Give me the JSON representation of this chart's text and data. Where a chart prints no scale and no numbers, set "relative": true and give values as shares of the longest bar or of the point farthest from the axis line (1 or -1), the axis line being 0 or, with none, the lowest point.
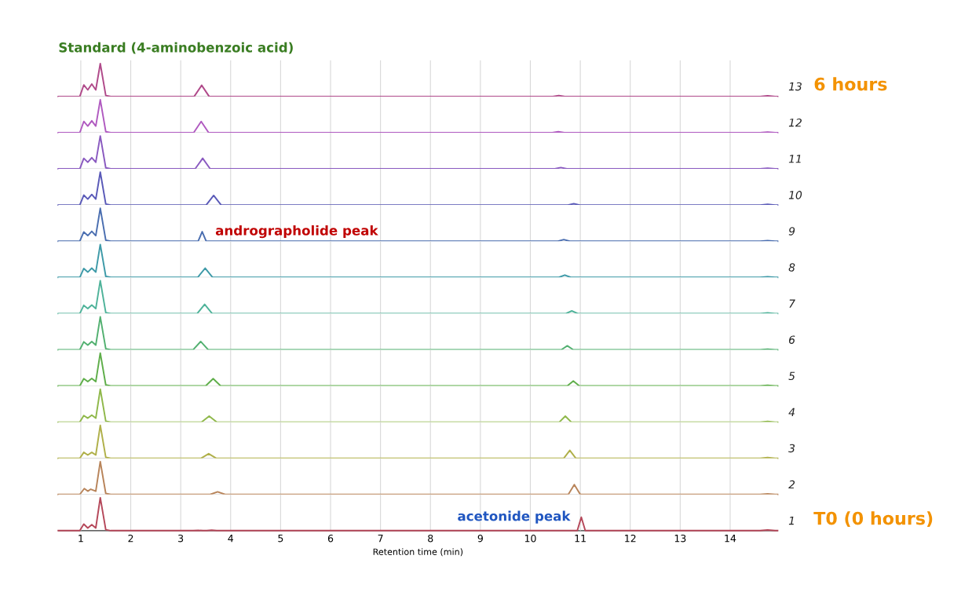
{
  "chart_data": [
    {
      "type": "line",
      "relative": true,
      "xlim": [
        0.55,
        14.95
      ],
      "xticks": [
        1,
        2,
        3,
        4,
        5,
        6,
        7,
        8,
        9,
        10,
        11,
        12,
        13,
        14
      ],
      "tick_labels": false,
      "grid": "x",
      "legend": false,
      "annotations": [
        "13",
        "6 hours",
        "Standard (4-aminobenzoic acid)"
      ],
      "series": [
        {
          "color": "#b04a8a",
          "x": [
            0.55,
            0.98,
            1.06,
            1.14,
            1.22,
            1.3,
            1.39,
            1.5,
            1.6,
            3.27,
            3.42,
            3.57,
            10.45,
            10.57,
            10.69,
            14.6,
            14.75,
            14.9,
            14.95
          ],
          "values": [
            0,
            0,
            0.35,
            0.2,
            0.38,
            0.2,
            1,
            0.03,
            0,
            0,
            0.34,
            0,
            0,
            0.03,
            0,
            0,
            0.02,
            0,
            0
          ]
        }
      ]
    },
    {
      "type": "line",
      "relative": true,
      "xlim": [
        0.55,
        14.95
      ],
      "xticks": [
        1,
        2,
        3,
        4,
        5,
        6,
        7,
        8,
        9,
        10,
        11,
        12,
        13,
        14
      ],
      "tick_labels": false,
      "grid": "x",
      "legend": false,
      "annotations": [
        "12"
      ],
      "series": [
        {
          "color": "#b05ac0",
          "x": [
            0.55,
            0.98,
            1.06,
            1.14,
            1.22,
            1.3,
            1.39,
            1.5,
            1.6,
            3.26,
            3.41,
            3.56,
            10.44,
            10.56,
            10.68,
            14.6,
            14.75,
            14.9,
            14.95
          ],
          "values": [
            0,
            0,
            0.34,
            0.2,
            0.36,
            0.2,
            1,
            0.03,
            0,
            0,
            0.34,
            0,
            0,
            0.03,
            0,
            0,
            0.02,
            0,
            0
          ]
        }
      ]
    },
    {
      "type": "line",
      "relative": true,
      "xlim": [
        0.55,
        14.95
      ],
      "xticks": [
        1,
        2,
        3,
        4,
        5,
        6,
        7,
        8,
        9,
        10,
        11,
        12,
        13,
        14
      ],
      "tick_labels": false,
      "grid": "x",
      "legend": false,
      "annotations": [
        "11"
      ],
      "series": [
        {
          "color": "#8a5ac0",
          "x": [
            0.55,
            0.98,
            1.06,
            1.14,
            1.22,
            1.3,
            1.39,
            1.5,
            1.6,
            3.29,
            3.44,
            3.59,
            10.49,
            10.61,
            10.73,
            14.6,
            14.75,
            14.9,
            14.95
          ],
          "values": [
            0,
            0,
            0.32,
            0.2,
            0.34,
            0.2,
            1,
            0.03,
            0,
            0,
            0.32,
            0,
            0,
            0.04,
            0,
            0,
            0.02,
            0,
            0
          ]
        }
      ]
    },
    {
      "type": "line",
      "relative": true,
      "xlim": [
        0.55,
        14.95
      ],
      "xticks": [
        1,
        2,
        3,
        4,
        5,
        6,
        7,
        8,
        9,
        10,
        11,
        12,
        13,
        14
      ],
      "tick_labels": false,
      "grid": "x",
      "legend": false,
      "annotations": [
        "10"
      ],
      "series": [
        {
          "color": "#5a5ab8",
          "x": [
            0.55,
            0.98,
            1.06,
            1.14,
            1.22,
            1.3,
            1.39,
            1.5,
            1.6,
            3.51,
            3.66,
            3.81,
            10.75,
            10.87,
            10.99,
            14.6,
            14.75,
            14.9,
            14.95
          ],
          "values": [
            0,
            0,
            0.3,
            0.18,
            0.32,
            0.18,
            1,
            0.03,
            0,
            0,
            0.29,
            0,
            0,
            0.04,
            0,
            0,
            0.02,
            0,
            0
          ]
        }
      ]
    },
    {
      "type": "line",
      "relative": true,
      "xlim": [
        0.55,
        14.95
      ],
      "xticks": [
        1,
        2,
        3,
        4,
        5,
        6,
        7,
        8,
        9,
        10,
        11,
        12,
        13,
        14
      ],
      "tick_labels": false,
      "grid": "x",
      "legend": false,
      "annotations": [
        "9",
        {
          "text": "andrographolide peak",
          "x": 3.43,
          "y": 0.29
        }
      ],
      "series": [
        {
          "color": "#4a6eb0",
          "x": [
            0.55,
            0.98,
            1.06,
            1.14,
            1.22,
            1.3,
            1.39,
            1.5,
            1.6,
            3.35,
            3.43,
            3.51,
            10.55,
            10.67,
            10.79,
            14.6,
            14.75,
            14.9,
            14.95
          ],
          "values": [
            0,
            0,
            0.28,
            0.17,
            0.3,
            0.17,
            1,
            0.03,
            0,
            0,
            0.29,
            0,
            0,
            0.05,
            0,
            0,
            0.02,
            0,
            0
          ]
        }
      ]
    },
    {
      "type": "line",
      "relative": true,
      "xlim": [
        0.55,
        14.95
      ],
      "xticks": [
        1,
        2,
        3,
        4,
        5,
        6,
        7,
        8,
        9,
        10,
        11,
        12,
        13,
        14
      ],
      "tick_labels": false,
      "grid": "x",
      "legend": false,
      "annotations": [
        "8"
      ],
      "series": [
        {
          "color": "#3e9aa8",
          "x": [
            0.55,
            0.98,
            1.06,
            1.14,
            1.22,
            1.3,
            1.39,
            1.5,
            1.6,
            3.34,
            3.49,
            3.64,
            10.57,
            10.69,
            10.81,
            14.6,
            14.75,
            14.9,
            14.95
          ],
          "values": [
            0,
            0,
            0.27,
            0.16,
            0.28,
            0.16,
            1,
            0.03,
            0,
            0,
            0.28,
            0,
            0,
            0.07,
            0,
            0,
            0.02,
            0,
            0
          ]
        }
      ]
    },
    {
      "type": "line",
      "relative": true,
      "xlim": [
        0.55,
        14.95
      ],
      "xticks": [
        1,
        2,
        3,
        4,
        5,
        6,
        7,
        8,
        9,
        10,
        11,
        12,
        13,
        14
      ],
      "tick_labels": false,
      "grid": "x",
      "legend": false,
      "annotations": [
        "7"
      ],
      "series": [
        {
          "color": "#4fb39a",
          "x": [
            0.55,
            0.98,
            1.06,
            1.14,
            1.22,
            1.3,
            1.39,
            1.5,
            1.6,
            3.33,
            3.48,
            3.63,
            10.71,
            10.83,
            10.95,
            14.6,
            14.75,
            14.9,
            14.95
          ],
          "values": [
            0,
            0,
            0.25,
            0.15,
            0.26,
            0.15,
            1,
            0.03,
            0,
            0,
            0.28,
            0,
            0,
            0.08,
            0,
            0,
            0.02,
            0,
            0
          ]
        }
      ]
    },
    {
      "type": "line",
      "relative": true,
      "xlim": [
        0.55,
        14.95
      ],
      "xticks": [
        1,
        2,
        3,
        4,
        5,
        6,
        7,
        8,
        9,
        10,
        11,
        12,
        13,
        14
      ],
      "tick_labels": false,
      "grid": "x",
      "legend": false,
      "annotations": [
        "6"
      ],
      "series": [
        {
          "color": "#52b070",
          "x": [
            0.55,
            0.98,
            1.06,
            1.14,
            1.22,
            1.3,
            1.39,
            1.5,
            1.6,
            3.25,
            3.4,
            3.55,
            10.62,
            10.74,
            10.86,
            14.6,
            14.75,
            14.9,
            14.95
          ],
          "values": [
            0,
            0,
            0.24,
            0.14,
            0.25,
            0.14,
            1,
            0.03,
            0,
            0,
            0.25,
            0,
            0,
            0.12,
            0,
            0,
            0.02,
            0,
            0
          ]
        }
      ]
    },
    {
      "type": "line",
      "relative": true,
      "xlim": [
        0.55,
        14.95
      ],
      "xticks": [
        1,
        2,
        3,
        4,
        5,
        6,
        7,
        8,
        9,
        10,
        11,
        12,
        13,
        14
      ],
      "tick_labels": false,
      "grid": "x",
      "legend": false,
      "annotations": [
        "5"
      ],
      "series": [
        {
          "color": "#5fae4a",
          "x": [
            0.55,
            0.98,
            1.06,
            1.14,
            1.22,
            1.3,
            1.39,
            1.5,
            1.6,
            3.5,
            3.65,
            3.8,
            10.74,
            10.86,
            10.98,
            14.6,
            14.75,
            14.9,
            14.95
          ],
          "values": [
            0,
            0,
            0.22,
            0.13,
            0.23,
            0.13,
            1,
            0.03,
            0,
            0,
            0.22,
            0,
            0,
            0.15,
            0,
            0,
            0.02,
            0,
            0
          ]
        }
      ]
    },
    {
      "type": "line",
      "relative": true,
      "xlim": [
        0.55,
        14.95
      ],
      "xticks": [
        1,
        2,
        3,
        4,
        5,
        6,
        7,
        8,
        9,
        10,
        11,
        12,
        13,
        14
      ],
      "tick_labels": false,
      "grid": "x",
      "legend": false,
      "annotations": [
        "4"
      ],
      "series": [
        {
          "color": "#8fb84a",
          "x": [
            0.55,
            0.98,
            1.06,
            1.14,
            1.22,
            1.3,
            1.39,
            1.5,
            1.6,
            3.42,
            3.57,
            3.72,
            10.58,
            10.7,
            10.82,
            14.6,
            14.75,
            14.9,
            14.95
          ],
          "values": [
            0,
            0,
            0.2,
            0.12,
            0.21,
            0.12,
            1,
            0.03,
            0,
            0,
            0.18,
            0,
            0,
            0.18,
            0,
            0,
            0.02,
            0,
            0
          ]
        }
      ]
    },
    {
      "type": "line",
      "relative": true,
      "xlim": [
        0.55,
        14.95
      ],
      "xticks": [
        1,
        2,
        3,
        4,
        5,
        6,
        7,
        8,
        9,
        10,
        11,
        12,
        13,
        14
      ],
      "tick_labels": false,
      "grid": "x",
      "legend": false,
      "annotations": [
        "3"
      ],
      "series": [
        {
          "color": "#b0b04a",
          "x": [
            0.55,
            0.98,
            1.06,
            1.14,
            1.22,
            1.3,
            1.39,
            1.5,
            1.6,
            3.41,
            3.56,
            3.71,
            10.67,
            10.79,
            10.91,
            14.6,
            14.75,
            14.9,
            14.95
          ],
          "values": [
            0,
            0,
            0.18,
            0.1,
            0.18,
            0.1,
            1,
            0.03,
            0,
            0,
            0.14,
            0,
            0,
            0.24,
            0,
            0,
            0.02,
            0,
            0
          ]
        }
      ]
    },
    {
      "type": "line",
      "relative": true,
      "xlim": [
        0.55,
        14.95
      ],
      "xticks": [
        1,
        2,
        3,
        4,
        5,
        6,
        7,
        8,
        9,
        10,
        11,
        12,
        13,
        14
      ],
      "tick_labels": false,
      "grid": "x",
      "legend": false,
      "annotations": [
        "2"
      ],
      "series": [
        {
          "color": "#b8845a",
          "x": [
            0.55,
            0.98,
            1.07,
            1.14,
            1.2,
            1.3,
            1.39,
            1.5,
            1.6,
            3.59,
            3.74,
            3.89,
            10.76,
            10.88,
            11.0,
            14.6,
            14.75,
            14.9,
            14.95
          ],
          "values": [
            0,
            0,
            0.18,
            0.1,
            0.16,
            0.1,
            1,
            0.03,
            0,
            0,
            0.08,
            0,
            0,
            0.3,
            0,
            0,
            0.02,
            0,
            0
          ]
        }
      ]
    },
    {
      "type": "line",
      "relative": true,
      "xlim": [
        0.55,
        14.95
      ],
      "xticks": [
        1,
        2,
        3,
        4,
        5,
        6,
        7,
        8,
        9,
        10,
        11,
        12,
        13,
        14
      ],
      "tick_labels": "x",
      "grid": "x",
      "legend": false,
      "xlabel": "Retention time (min)",
      "annotations": [
        "1",
        "T0 (0 hours)",
        {
          "text": "acetonide peak",
          "x": 11.02,
          "y": 0.41
        }
      ],
      "series": [
        {
          "color": "#b5485a",
          "x": [
            0.55,
            0.98,
            1.06,
            1.14,
            1.22,
            1.3,
            1.39,
            1.5,
            1.6,
            3.25,
            3.35,
            3.45,
            3.52,
            3.62,
            3.72,
            10.94,
            11.02,
            11.1,
            14.6,
            14.75,
            14.9,
            14.95
          ],
          "values": [
            0,
            0,
            0.2,
            0.08,
            0.18,
            0.08,
            1,
            0.03,
            0,
            0,
            0.01,
            0,
            0,
            0.015,
            0,
            0,
            0.41,
            0,
            0,
            0.02,
            0,
            0
          ]
        }
      ]
    }
  ]
}
